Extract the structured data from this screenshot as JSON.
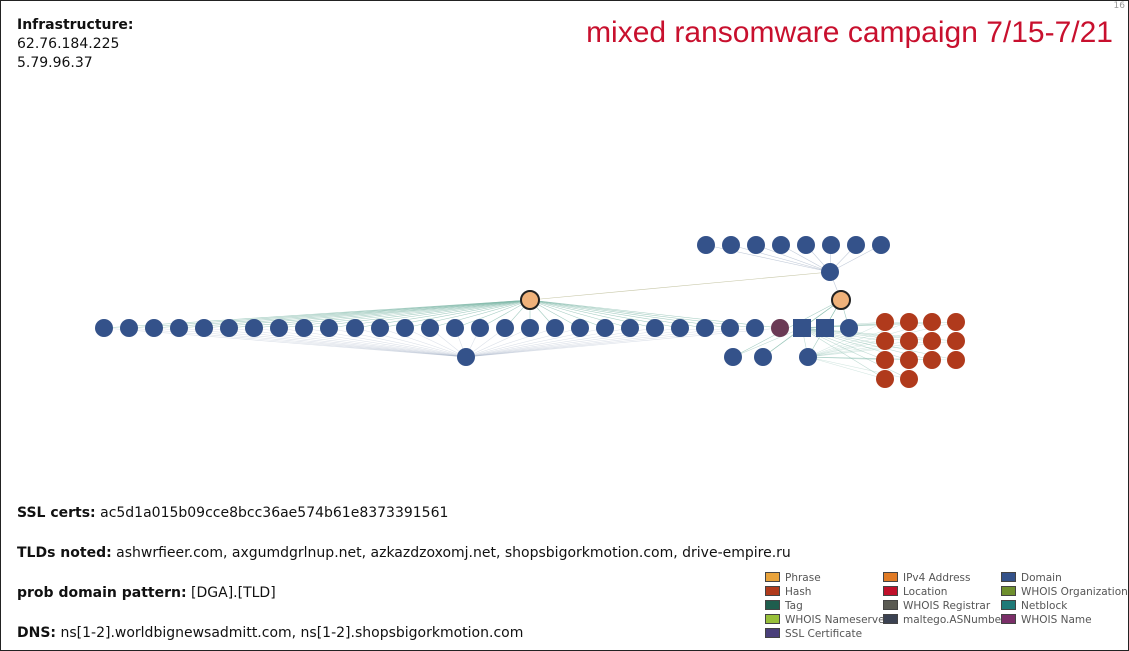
{
  "corner_mark": "16",
  "title": "mixed ransomware campaign 7/15-7/21",
  "infrastructure": {
    "label": "Infrastructure:",
    "ips": [
      "62.76.184.225",
      "5.79.96.37"
    ]
  },
  "notes": {
    "ssl_label": "SSL certs:",
    "ssl_value": "ac5d1a015b09cce8bcc36ae574b61e8373391561",
    "tlds_label": "TLDs noted:",
    "tlds_value": "ashwrfieer.com, axgumdgrlnup.net, azkazdzoxomj.net, shopsbigorkmotion.com, drive-empire.ru",
    "pattern_label": "prob domain pattern:",
    "pattern_value": "[DGA].[TLD]",
    "dns_label": "DNS:",
    "dns_value": "ns[1-2].worldbignewsadmitt.com, ns[1-2].shopsbigorkmotion.com"
  },
  "legend": [
    {
      "label": "Phrase",
      "color": "#e8a33c"
    },
    {
      "label": "IPv4 Address",
      "color": "#e07b26"
    },
    {
      "label": "Domain",
      "color": "#34528a"
    },
    {
      "label": "Hash",
      "color": "#b03a1c"
    },
    {
      "label": "Location",
      "color": "#c0102a"
    },
    {
      "label": "WHOIS Organization",
      "color": "#6e8f2e"
    },
    {
      "label": "Tag",
      "color": "#1e5e4e"
    },
    {
      "label": "WHOIS Registrar",
      "color": "#5a5a52"
    },
    {
      "label": "Netblock",
      "color": "#1f7a78"
    },
    {
      "label": "WHOIS Nameserver",
      "color": "#98c03a"
    },
    {
      "label": "maltego.ASNumber",
      "color": "#3b4252"
    },
    {
      "label": "WHOIS Name",
      "color": "#7a2e68"
    },
    {
      "label": "SSL Certificate",
      "color": "#4a3f7a"
    }
  ],
  "node_colors": {
    "domain": "#34528a",
    "hash": "#b03a1c",
    "ip": "#f0b27a",
    "edge": "#7fb8a8"
  }
}
